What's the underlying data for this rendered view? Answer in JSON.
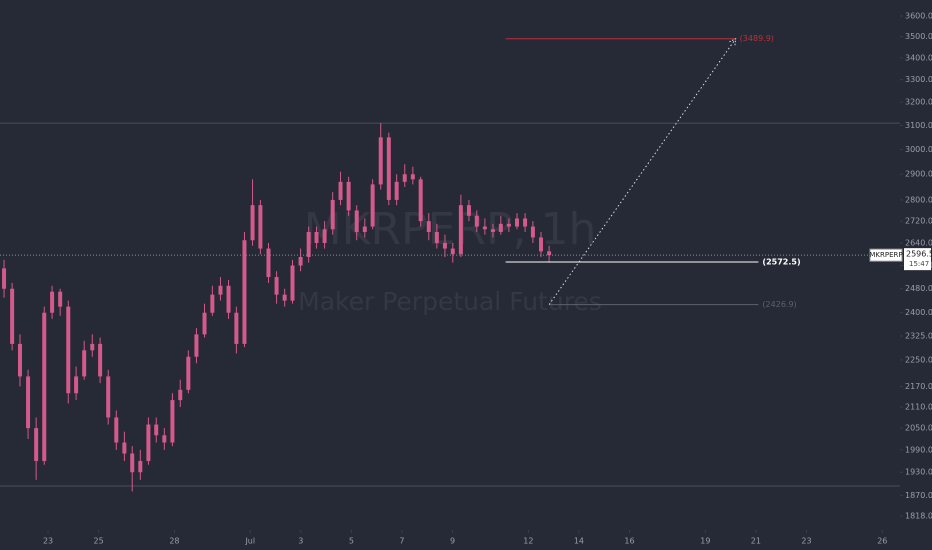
{
  "chart_data": {
    "type": "candlestick",
    "title": "MKRPERP, 1h",
    "subtitle": "Maker Perpetual Futures",
    "color": "#d35a8a",
    "log_scale": true,
    "grid": false,
    "x": [
      21.26,
      21.58,
      21.89,
      22.21,
      22.53,
      22.85,
      23.16,
      23.48,
      23.8,
      24.11,
      24.43,
      24.75,
      25.06,
      25.38,
      25.7,
      26.02,
      26.33,
      26.65,
      26.97,
      27.28,
      27.6,
      27.92,
      28.23,
      28.55,
      28.87,
      29.19,
      29.5,
      29.82,
      30.14,
      30.45,
      30.77,
      31.09,
      31.4,
      31.72,
      32.04,
      32.36,
      32.67,
      32.99,
      33.31,
      33.62,
      33.94,
      34.26,
      34.57,
      34.89,
      35.21,
      35.53,
      35.84,
      36.16,
      36.48,
      36.79,
      37.11,
      37.43,
      37.74,
      38.06,
      38.38,
      38.7,
      39.01,
      39.33,
      39.65,
      39.96,
      40.28,
      40.6,
      40.91,
      41.23,
      41.55,
      41.87,
      42.18,
      42.5,
      42.82
    ],
    "open": [
      2550,
      2480,
      2300,
      2200,
      2050,
      1960,
      2400,
      2470,
      2420,
      2150,
      2200,
      2280,
      2300,
      2200,
      2080,
      2010,
      1980,
      1930,
      1960,
      2060,
      2030,
      2010,
      2130,
      2160,
      2260,
      2330,
      2400,
      2460,
      2490,
      2400,
      2300,
      2650,
      2780,
      2620,
      2520,
      2460,
      2440,
      2560,
      2590,
      2680,
      2640,
      2690,
      2800,
      2870,
      2760,
      2680,
      2700,
      2860,
      3050,
      2800,
      2870,
      2900,
      2880,
      2720,
      2680,
      2640,
      2620,
      2600,
      2780,
      2740,
      2700,
      2690,
      2680,
      2710,
      2700,
      2730,
      2700,
      2660,
      2610
    ],
    "high": [
      2580,
      2500,
      2330,
      2220,
      2080,
      2420,
      2490,
      2480,
      2440,
      2230,
      2310,
      2330,
      2320,
      2220,
      2100,
      2040,
      2000,
      1990,
      2080,
      2080,
      2050,
      2150,
      2190,
      2280,
      2350,
      2430,
      2490,
      2520,
      2510,
      2420,
      2680,
      2880,
      2800,
      2640,
      2540,
      2480,
      2580,
      2620,
      2700,
      2700,
      2720,
      2830,
      2910,
      2890,
      2780,
      2730,
      2880,
      3110,
      3070,
      2900,
      2940,
      2930,
      2890,
      2750,
      2710,
      2670,
      2640,
      2820,
      2800,
      2760,
      2730,
      2710,
      2740,
      2730,
      2750,
      2750,
      2720,
      2680,
      2630
    ],
    "low": [
      2450,
      2280,
      2170,
      2020,
      1910,
      1950,
      2380,
      2390,
      2120,
      2130,
      2190,
      2260,
      2180,
      2060,
      1990,
      1960,
      1880,
      1910,
      1950,
      2010,
      1990,
      2000,
      2110,
      2150,
      2240,
      2320,
      2390,
      2440,
      2380,
      2270,
      2290,
      2630,
      2600,
      2500,
      2430,
      2420,
      2430,
      2540,
      2570,
      2620,
      2620,
      2670,
      2780,
      2740,
      2650,
      2660,
      2690,
      2840,
      2780,
      2780,
      2850,
      2860,
      2700,
      2650,
      2620,
      2590,
      2570,
      2590,
      2720,
      2680,
      2670,
      2660,
      2670,
      2680,
      2690,
      2680,
      2640,
      2590,
      2570
    ],
    "close": [
      2480,
      2300,
      2200,
      2050,
      1960,
      2400,
      2470,
      2420,
      2150,
      2200,
      2280,
      2300,
      2200,
      2080,
      2010,
      1980,
      1930,
      1960,
      2060,
      2030,
      2010,
      2130,
      2160,
      2260,
      2330,
      2400,
      2460,
      2490,
      2400,
      2300,
      2650,
      2780,
      2620,
      2520,
      2460,
      2440,
      2560,
      2590,
      2680,
      2640,
      2690,
      2800,
      2870,
      2760,
      2680,
      2700,
      2860,
      3050,
      2800,
      2870,
      2900,
      2880,
      2720,
      2680,
      2640,
      2620,
      2600,
      2780,
      2740,
      2700,
      2690,
      2680,
      2710,
      2700,
      2730,
      2700,
      2660,
      2610,
      2596.5
    ],
    "xlim": [
      21.1,
      56.7
    ],
    "xticks": [
      {
        "value": 23,
        "label": "23"
      },
      {
        "value": 25,
        "label": "25"
      },
      {
        "value": 28,
        "label": "28"
      },
      {
        "value": 31,
        "label": "Jul"
      },
      {
        "value": 33,
        "label": "3"
      },
      {
        "value": 35,
        "label": "5"
      },
      {
        "value": 37,
        "label": "7"
      },
      {
        "value": 39,
        "label": "9"
      },
      {
        "value": 42,
        "label": "12"
      },
      {
        "value": 44,
        "label": "14"
      },
      {
        "value": 46,
        "label": "16"
      },
      {
        "value": 49,
        "label": "19"
      },
      {
        "value": 51,
        "label": "21"
      },
      {
        "value": 53,
        "label": "23"
      },
      {
        "value": 56,
        "label": "26"
      }
    ],
    "ylim": [
      1818,
      3600
    ],
    "yticks": [
      {
        "value": 3600,
        "label": "3600.0"
      },
      {
        "value": 3500,
        "label": "3500.0"
      },
      {
        "value": 3400,
        "label": "3400.0"
      },
      {
        "value": 3300,
        "label": "3300.0"
      },
      {
        "value": 3200,
        "label": "3200.0"
      },
      {
        "value": 3100,
        "label": "3100.0"
      },
      {
        "value": 3000,
        "label": "3000.0"
      },
      {
        "value": 2900,
        "label": "2900.0"
      },
      {
        "value": 2800,
        "label": "2800.0"
      },
      {
        "value": 2720,
        "label": "2720.0"
      },
      {
        "value": 2640,
        "label": "2640.0"
      },
      {
        "value": 2560,
        "label": "2560.0"
      },
      {
        "value": 2480,
        "label": "2480.0"
      },
      {
        "value": 2400,
        "label": "2400.0"
      },
      {
        "value": 2325,
        "label": "2325.0"
      },
      {
        "value": 2250,
        "label": "2250.0"
      },
      {
        "value": 2170,
        "label": "2170.0"
      },
      {
        "value": 2110,
        "label": "2110.0"
      },
      {
        "value": 2050,
        "label": "2050.0"
      },
      {
        "value": 1990,
        "label": "1990.0"
      },
      {
        "value": 1930,
        "label": "1930.0"
      },
      {
        "value": 1870,
        "label": "1870.0"
      },
      {
        "value": 1818,
        "label": "1818.0"
      }
    ],
    "levels": [
      {
        "value": 3489.9,
        "label": "(3489.9)",
        "color": "#b8323a",
        "x": [
          41.1,
          50.2
        ]
      },
      {
        "value": 2572.5,
        "label": "(2572.5)",
        "color": "#ffffff",
        "x": [
          41.1,
          51.1
        ]
      },
      {
        "value": 2426.9,
        "label": "(2426.9)",
        "color": "#5d6170",
        "x": [
          42.82,
          51.1
        ]
      }
    ],
    "rays": [
      3110,
      1894
    ],
    "arrow": {
      "x": [
        42.82,
        50.2
      ],
      "y": [
        2426.9,
        3489.9
      ]
    },
    "last_price": {
      "symbol": "MKRPERP",
      "value": 2596.5,
      "time": "15:47"
    }
  }
}
